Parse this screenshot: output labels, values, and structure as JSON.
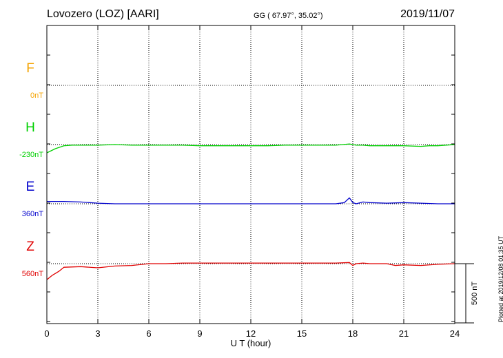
{
  "header": {
    "title": "Lovozero (LOZ)  [AARI]",
    "coords": "GG ( 67.97°,  35.02°)",
    "date": "2019/11/07"
  },
  "footer_note": "Plotted at 2019/12/08 01:35 UT",
  "scale_bar_label": "500 nT",
  "colors": {
    "F": "#f4a300",
    "H": "#00d000",
    "E": "#0000cc",
    "Z": "#e00000"
  },
  "chart_data": {
    "type": "line",
    "xlabel": "U T (hour)",
    "xlim": [
      0,
      24
    ],
    "xticks": [
      0,
      3,
      6,
      9,
      12,
      15,
      18,
      21,
      24
    ],
    "grid": true,
    "series": [
      {
        "name": "F",
        "baseline_label": "0nT",
        "x": [],
        "y": []
      },
      {
        "name": "H",
        "baseline_label": "-230nT",
        "x": [
          0,
          0.5,
          1,
          1.5,
          2,
          3,
          4,
          5,
          6,
          7,
          8,
          9,
          10,
          11,
          12,
          13,
          14,
          15,
          16,
          17,
          17.8,
          18,
          18.2,
          18.6,
          19,
          20,
          21,
          22,
          22.5,
          23,
          24
        ],
        "y": [
          -70,
          -35,
          -10,
          -5,
          -5,
          -5,
          0,
          -5,
          -5,
          -5,
          -5,
          -10,
          -10,
          -10,
          -10,
          -10,
          -5,
          -5,
          -5,
          -5,
          5,
          0,
          -5,
          -5,
          -10,
          -10,
          -10,
          -15,
          -10,
          -10,
          0
        ]
      },
      {
        "name": "E",
        "baseline_label": "360nT",
        "x": [
          0,
          0.5,
          1,
          2,
          3,
          4,
          5,
          6,
          7,
          8,
          9,
          10,
          11,
          12,
          13,
          14,
          15,
          16,
          17,
          17.5,
          17.8,
          18,
          18.2,
          18.6,
          19,
          20,
          21,
          22,
          23,
          24
        ],
        "y": [
          20,
          20,
          20,
          15,
          5,
          0,
          0,
          0,
          0,
          0,
          0,
          0,
          0,
          0,
          0,
          0,
          0,
          0,
          0,
          10,
          50,
          10,
          0,
          15,
          10,
          5,
          10,
          5,
          0,
          0
        ]
      },
      {
        "name": "Z",
        "baseline_label": "560nT",
        "x": [
          0,
          0.3,
          0.7,
          1,
          2,
          3,
          4,
          5,
          6,
          7,
          8,
          9,
          10,
          11,
          12,
          13,
          14,
          15,
          16,
          17,
          17.8,
          18,
          18.2,
          18.6,
          19,
          20,
          20.5,
          21,
          22,
          23,
          24
        ],
        "y": [
          -135,
          -100,
          -65,
          -30,
          -25,
          -35,
          -20,
          -15,
          0,
          0,
          5,
          5,
          5,
          5,
          5,
          5,
          5,
          5,
          5,
          5,
          10,
          -15,
          0,
          5,
          0,
          0,
          -15,
          -10,
          -15,
          -5,
          0
        ]
      }
    ]
  }
}
